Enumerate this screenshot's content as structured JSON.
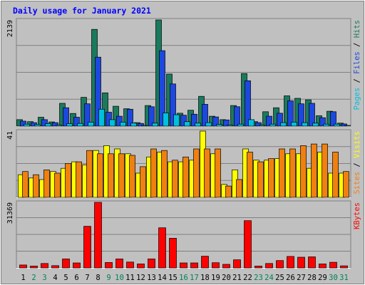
{
  "chart_data": [
    {
      "type": "bar",
      "panel": "pages-files-hits",
      "title": "Daily usage for January 2021",
      "ymax_label": "2139",
      "ylim": [
        0,
        2139
      ],
      "legend": [
        {
          "text": "Pages",
          "color": "#00c0e0"
        },
        {
          "text": "Files",
          "color": "#1c48e0"
        },
        {
          "text": "Hits",
          "color": "#1a7a5e"
        }
      ],
      "categories": [
        "1",
        "2",
        "3",
        "4",
        "5",
        "6",
        "7",
        "8",
        "9",
        "10",
        "11",
        "12",
        "13",
        "14",
        "15",
        "16",
        "17",
        "18",
        "19",
        "20",
        "21",
        "22",
        "23",
        "24",
        "25",
        "26",
        "27",
        "28",
        "29",
        "30",
        "31"
      ],
      "series": [
        {
          "name": "Hits",
          "color": "#1a7a5e",
          "values": [
            130,
            90,
            180,
            85,
            460,
            255,
            580,
            1950,
            670,
            400,
            350,
            70,
            415,
            2139,
            1050,
            260,
            320,
            600,
            200,
            130,
            415,
            1060,
            90,
            290,
            370,
            610,
            560,
            530,
            210,
            300,
            60
          ]
        },
        {
          "name": "Files",
          "color": "#1c48e0",
          "values": [
            100,
            70,
            130,
            70,
            370,
            180,
            450,
            1390,
            280,
            200,
            340,
            55,
            390,
            1520,
            850,
            220,
            240,
            440,
            185,
            125,
            390,
            915,
            70,
            200,
            260,
            510,
            450,
            460,
            170,
            290,
            45
          ]
        },
        {
          "name": "Pages",
          "color": "#00c0e0",
          "values": [
            40,
            30,
            50,
            20,
            50,
            55,
            80,
            340,
            130,
            80,
            60,
            15,
            60,
            265,
            230,
            90,
            60,
            70,
            35,
            20,
            40,
            130,
            20,
            40,
            70,
            80,
            70,
            60,
            40,
            40,
            10
          ]
        }
      ]
    },
    {
      "type": "bar",
      "panel": "sites-visits",
      "ymax_label": "41",
      "ylim": [
        0,
        41
      ],
      "legend": [
        {
          "text": "Sites",
          "color": "#f08010"
        },
        {
          "text": "Visits",
          "color": "#ffff00"
        }
      ],
      "categories": [
        "1",
        "2",
        "3",
        "4",
        "5",
        "6",
        "7",
        "8",
        "9",
        "10",
        "11",
        "12",
        "13",
        "14",
        "15",
        "16",
        "17",
        "18",
        "19",
        "20",
        "21",
        "22",
        "23",
        "24",
        "25",
        "26",
        "27",
        "28",
        "29",
        "30",
        "31"
      ],
      "series": [
        {
          "name": "Visits",
          "color": "#ffff00",
          "values": [
            14,
            12,
            11,
            16,
            18,
            22,
            20,
            29,
            32,
            30,
            27,
            15,
            25,
            28,
            22,
            22,
            23,
            41,
            27,
            8,
            17,
            30,
            23,
            23,
            24,
            27,
            27,
            18,
            28,
            15,
            15
          ]
        },
        {
          "name": "Sites",
          "color": "#f08010",
          "values": [
            16,
            14,
            17,
            15,
            21,
            22,
            29,
            27,
            27,
            27,
            26,
            19,
            30,
            29,
            23,
            25,
            30,
            30,
            30,
            7,
            11,
            28,
            22,
            24,
            30,
            30,
            32,
            33,
            33,
            28,
            16
          ]
        }
      ]
    },
    {
      "type": "bar",
      "panel": "kbytes",
      "ymax_label": "31369",
      "ylim": [
        0,
        31369
      ],
      "legend": [
        {
          "text": "KBytes",
          "color": "#ff0000"
        }
      ],
      "categories": [
        "1",
        "2",
        "3",
        "4",
        "5",
        "6",
        "7",
        "8",
        "9",
        "10",
        "11",
        "12",
        "13",
        "14",
        "15",
        "16",
        "17",
        "18",
        "19",
        "20",
        "21",
        "22",
        "23",
        "24",
        "25",
        "26",
        "27",
        "28",
        "29",
        "30",
        "31"
      ],
      "series": [
        {
          "name": "KBytes",
          "color": "#ff0000",
          "values": [
            1400,
            900,
            2100,
            1100,
            4300,
            2400,
            19900,
            31369,
            2600,
            4300,
            2800,
            1900,
            4300,
            19200,
            14200,
            2400,
            2400,
            5600,
            2500,
            1700,
            3900,
            22600,
            900,
            2100,
            3500,
            5500,
            5100,
            5300,
            1900,
            2700,
            1000
          ]
        }
      ]
    }
  ],
  "weekend_days": [
    2,
    3,
    9,
    10,
    16,
    17,
    23,
    24,
    30,
    31
  ],
  "colors": {
    "background": "#c0c0c0",
    "title": "#0000ff",
    "axis_text": "#000000",
    "weekday": "#000000",
    "weekend": "#00805a",
    "grid": "#808080"
  }
}
